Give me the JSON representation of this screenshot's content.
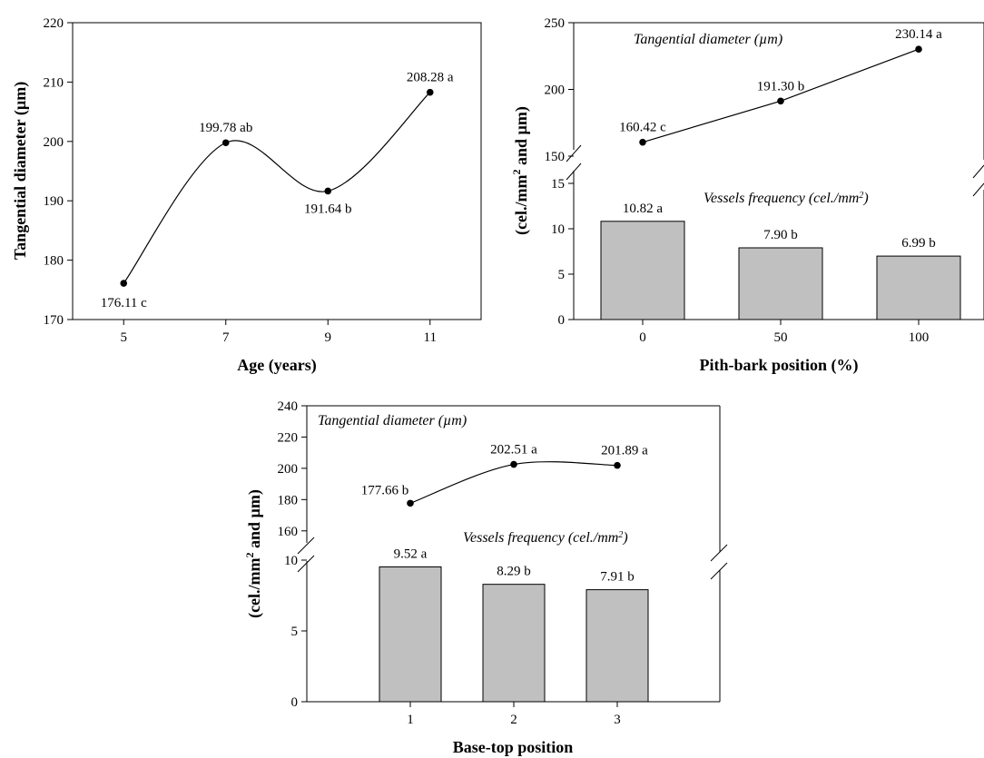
{
  "chart_data": [
    {
      "id": "age",
      "type": "line",
      "xlabel": "Age (years)",
      "ylabel": "Tangential diameter (µm)",
      "x": [
        5,
        7,
        9,
        11
      ],
      "x_tick_labels": [
        "5",
        "7",
        "9",
        "11"
      ],
      "ylim": [
        170,
        220
      ],
      "y_ticks": [
        170,
        180,
        190,
        200,
        210,
        220
      ],
      "grid": false,
      "series": [
        {
          "values": [
            176.11,
            199.78,
            191.64,
            208.28
          ],
          "labels": [
            "176.11 c",
            "199.78 ab",
            "191.64 b",
            "208.28 a"
          ]
        }
      ]
    },
    {
      "id": "pith-bark",
      "type": "bar",
      "xlabel": "Pith-bark position (%)",
      "ylabel": "(cel./mm2 and µm)",
      "categories": [
        "0",
        "50",
        "100"
      ],
      "grid": false,
      "upper_panel": {
        "type": "line",
        "title": "Tangential diameter (µm)",
        "ylim": [
          150,
          250
        ],
        "y_ticks": [
          150,
          200,
          250
        ],
        "values": [
          160.42,
          191.3,
          230.14
        ],
        "labels": [
          "160.42 c",
          "191.30 b",
          "230.14 a"
        ]
      },
      "lower_panel": {
        "type": "bar",
        "title": "Vessels frequency (cel./mm2)",
        "ylim": [
          0,
          15
        ],
        "y_ticks": [
          0,
          5,
          10,
          15
        ],
        "values": [
          10.82,
          7.9,
          6.99
        ],
        "labels": [
          "10.82 a",
          "7.90 b",
          "6.99 b"
        ]
      },
      "bar_color": "#c0c0c0"
    },
    {
      "id": "base-top",
      "type": "bar",
      "xlabel": "Base-top position",
      "ylabel": "(cel./mm2 and µm)",
      "categories": [
        "1",
        "2",
        "3"
      ],
      "grid": false,
      "upper_panel": {
        "type": "line",
        "title": "Tangential diameter (µm)",
        "ylim": [
          150,
          240
        ],
        "y_ticks": [
          160,
          180,
          200,
          220,
          240
        ],
        "values": [
          177.66,
          202.51,
          201.89
        ],
        "labels": [
          "177.66 b",
          "202.51 a",
          "201.89 a"
        ]
      },
      "lower_panel": {
        "type": "bar",
        "title": "Vessels frequency (cel./mm2)",
        "ylim": [
          0,
          10
        ],
        "y_ticks": [
          0,
          5,
          10
        ],
        "values": [
          9.52,
          8.29,
          7.91
        ],
        "labels": [
          "9.52 a",
          "8.29 b",
          "7.91 b"
        ]
      },
      "bar_color": "#c0c0c0"
    }
  ]
}
